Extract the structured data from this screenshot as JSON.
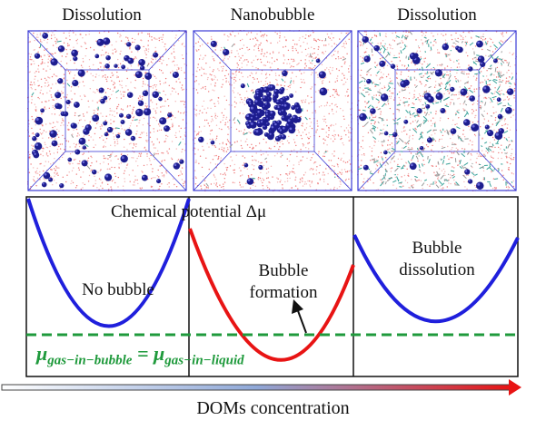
{
  "top_labels": {
    "left": "Dissolution",
    "middle": "Nanobubble",
    "right": "Dissolution"
  },
  "panel_text": {
    "chemical_potential": "Chemical  potential Δμ",
    "no_bubble": "No bubble",
    "bubble_formation_line1": "Bubble",
    "bubble_formation_line2": "formation",
    "bubble_dissolution_line1": "Bubble",
    "bubble_dissolution_line2": "dissolution"
  },
  "equation": "μgas−in−bubble = μgas−in−liquid",
  "x_axis_label": "DOMs concentration",
  "colors": {
    "curve_left": "#1f1fdc",
    "curve_middle": "#e81414",
    "curve_right": "#1f1fdc",
    "equilibrium_line": "#1f9a3c",
    "bubble": "#1d1d8f",
    "arrow_gradient_start": "#ffffff",
    "arrow_gradient_mid": "#8fa8d8",
    "arrow_gradient_end": "#e81414"
  }
}
